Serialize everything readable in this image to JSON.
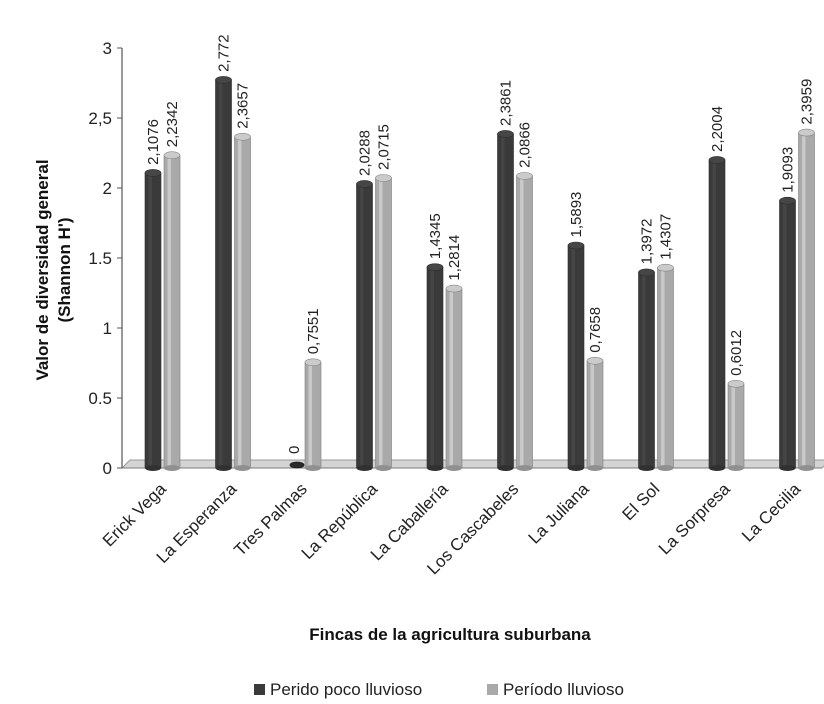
{
  "chart_data": {
    "type": "bar",
    "categories": [
      "Erick Vega",
      "La Esperanza",
      "Tres Palmas",
      "La República",
      "La Caballería",
      "Los Cascabeles",
      "La Juliana",
      "El Sol",
      "La Sorpresa",
      "La Cecilia"
    ],
    "series": [
      {
        "name": "Perido poco lluvioso",
        "values": [
          2.1076,
          2.772,
          0,
          2.0288,
          1.4345,
          2.3861,
          1.5893,
          1.3972,
          2.2004,
          1.9093
        ],
        "labels": [
          "2,1076",
          "2,772",
          "0",
          "2,0288",
          "1,4345",
          "2,3861",
          "1,5893",
          "1,3972",
          "2,2004",
          "1,9093"
        ],
        "color": "#3a3a3a"
      },
      {
        "name": "Período lluvioso",
        "values": [
          2.2342,
          2.3657,
          0.7551,
          2.0715,
          1.2814,
          2.0866,
          0.7658,
          1.4307,
          0.6012,
          2.3959
        ],
        "labels": [
          "2,2342",
          "2,3657",
          "0,7551",
          "2,0715",
          "1,2814",
          "2,0866",
          "0,7658",
          "1,4307",
          "0,6012",
          "2,3959"
        ],
        "color": "#a9a9a9"
      }
    ],
    "ylim": [
      0,
      3
    ],
    "yticks": [
      0,
      0.5,
      1,
      1.5,
      2,
      2.5,
      3
    ],
    "ytick_labels": [
      "0",
      "0.5",
      "1",
      "1.5",
      "2",
      "2,5",
      "3"
    ],
    "ylabel_line1": "Valor de diversidad general",
    "ylabel_line2": "(Shannon H')",
    "xlabel": "Fincas de la agricultura suburbana",
    "legend_position": "bottom"
  }
}
